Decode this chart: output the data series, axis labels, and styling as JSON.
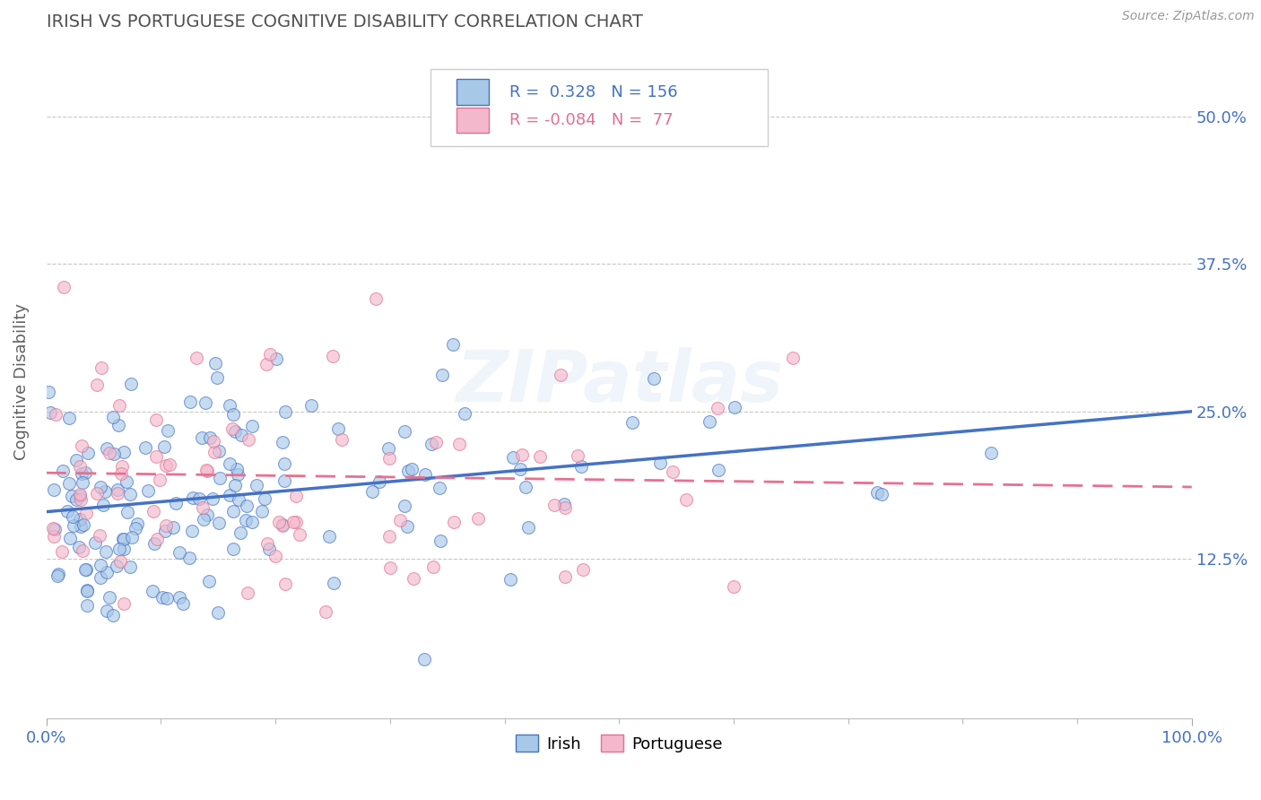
{
  "title": "IRISH VS PORTUGUESE COGNITIVE DISABILITY CORRELATION CHART",
  "source": "Source: ZipAtlas.com",
  "ylabel": "Cognitive Disability",
  "xlim": [
    0.0,
    1.0
  ],
  "ylim": [
    -0.01,
    0.56
  ],
  "yticks": [
    0.125,
    0.25,
    0.375,
    0.5
  ],
  "ytick_labels": [
    "12.5%",
    "25.0%",
    "37.5%",
    "50.0%"
  ],
  "xtick_labels": [
    "0.0%",
    "100.0%"
  ],
  "irish_color": "#a8c8e8",
  "irish_edge_color": "#4472c4",
  "portuguese_color": "#f4b8cc",
  "portuguese_edge_color": "#e07090",
  "irish_line_color": "#4472c4",
  "portuguese_line_color": "#e87090",
  "irish_R": 0.328,
  "irish_N": 156,
  "portuguese_R": -0.084,
  "portuguese_N": 77,
  "irish_intercept": 0.165,
  "irish_slope": 0.085,
  "portuguese_intercept": 0.198,
  "portuguese_slope": -0.012,
  "watermark": "ZIPatlas",
  "background_color": "#ffffff",
  "grid_color": "#c8c8c8",
  "title_color": "#505050",
  "axis_label_color": "#4472c4",
  "legend_r_irish_color": "#4472c4",
  "legend_r_port_color": "#e07090",
  "legend_box_color": "#e8e8e8"
}
